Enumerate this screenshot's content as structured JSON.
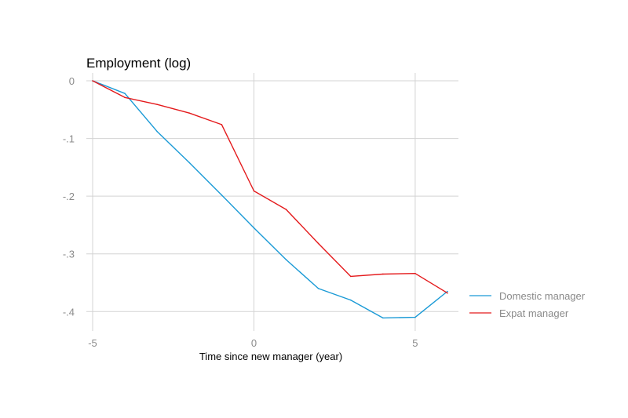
{
  "chart_data": {
    "type": "line",
    "title": "Employment (log)",
    "xlabel": "Time since new manager (year)",
    "ylabel": "",
    "xlim": [
      -5,
      6
    ],
    "ylim": [
      -0.42,
      0
    ],
    "xticks": [
      -5,
      0,
      5
    ],
    "xtick_labels": [
      "-5",
      "0",
      "5"
    ],
    "yticks": [
      0,
      -0.1,
      -0.2,
      -0.3,
      -0.4
    ],
    "ytick_labels": [
      "0",
      "-.1",
      "-.2",
      "-.3",
      "-.4"
    ],
    "grid": true,
    "legend_position": "right",
    "x": [
      -5,
      -4,
      -3,
      -2,
      -1,
      0,
      1,
      2,
      3,
      4,
      5,
      6
    ],
    "series": [
      {
        "name": "Domestic manager",
        "color": "#1a9ad6",
        "values": [
          0,
          -0.022,
          -0.088,
          -0.142,
          -0.198,
          -0.255,
          -0.31,
          -0.36,
          -0.38,
          -0.411,
          -0.41,
          -0.365
        ]
      },
      {
        "name": "Expat manager",
        "color": "#e41a1c",
        "values": [
          0,
          -0.029,
          -0.041,
          -0.056,
          -0.076,
          -0.191,
          -0.223,
          -0.282,
          -0.339,
          -0.335,
          -0.334,
          -0.368
        ]
      }
    ]
  }
}
